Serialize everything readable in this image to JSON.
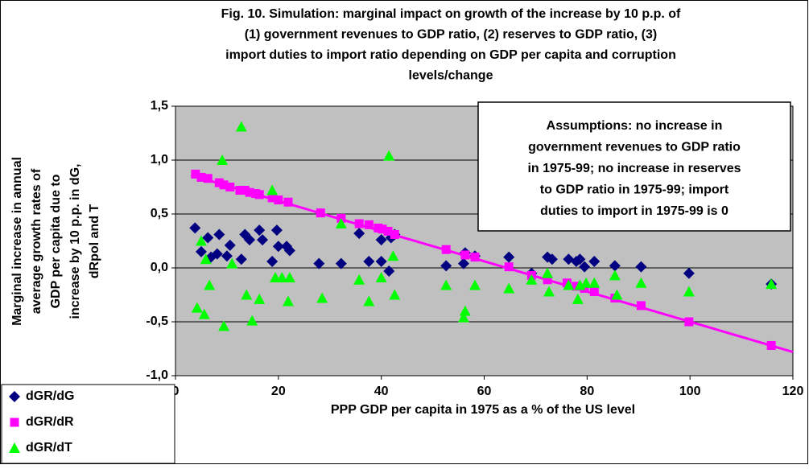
{
  "chart_data": {
    "type": "scatter",
    "title": [
      "Fig. 10. Simulation: marginal impact on growth of the increase by 10 p.p. of",
      "(1) government revenues to GDP ratio, (2) reserves to GDP ratio, (3)",
      "import duties to import ratio depending on GDP per capita and corruption",
      "levels/change"
    ],
    "x_label": "PPP GDP per capita in 1975 as a % of the US level",
    "y_label": [
      "Marginal increase in annual",
      "average growth rates of",
      "GDP per capita due to",
      "increase by 10 p.p. in dG,",
      "dRpol and T"
    ],
    "annotation": [
      "Assumptions: no increase in",
      "government revenues to GDP ratio",
      "in 1975-99; no increase in reserves",
      "to GDP ratio in 1975-99; import",
      "duties to import in 1975-99 is 0"
    ],
    "xlim": [
      0,
      120
    ],
    "xticks": [
      0,
      20,
      40,
      60,
      80,
      100,
      120
    ],
    "ylim": [
      -1.0,
      1.5
    ],
    "yticks": [
      {
        "value": -1.0,
        "label": "-1,0"
      },
      {
        "value": -0.5,
        "label": "-0,5"
      },
      {
        "value": 0.0,
        "label": "0,0"
      },
      {
        "value": 0.5,
        "label": "0,5"
      },
      {
        "value": 1.0,
        "label": "1,0"
      },
      {
        "value": 1.5,
        "label": "1,5"
      }
    ],
    "grid": true,
    "series": [
      {
        "name": "dGR/dG",
        "color": "#000080",
        "marker": "diamond",
        "x": [
          3.8,
          5,
          6.3,
          6.9,
          8.5,
          8.1,
          10,
          10.6,
          12.8,
          13.5,
          14.4,
          16.3,
          16.9,
          18.8,
          19.7,
          20,
          21.6,
          22.2,
          27.9,
          32.2,
          35.7,
          37.6,
          40,
          40,
          41.5,
          41.9,
          42.6,
          52.6,
          56,
          56.3,
          58.2,
          64.8,
          69.2,
          72.3,
          73.2,
          76.4,
          77.9,
          78.6,
          79.5,
          81.4,
          85.4,
          90.5,
          99.8,
          115.8
        ],
        "values": [
          0.37,
          0.15,
          0.28,
          0.1,
          0.31,
          0.13,
          0.11,
          0.21,
          0.08,
          0.31,
          0.26,
          0.35,
          0.26,
          0.06,
          0.35,
          0.2,
          0.2,
          0.16,
          0.04,
          0.04,
          0.32,
          0.06,
          0.06,
          0.26,
          -0.03,
          0.28,
          0.31,
          0.02,
          0.04,
          0.14,
          0.11,
          0.1,
          -0.05,
          0.1,
          0.08,
          0.08,
          0.06,
          0.08,
          0.01,
          0.06,
          0.02,
          0.01,
          -0.05,
          -0.15
        ]
      },
      {
        "name": "dGR/dR",
        "color": "#ff00ff",
        "marker": "square",
        "x": [
          3.9,
          5,
          6.3,
          8.5,
          9.4,
          10.6,
          12.5,
          13.5,
          14.4,
          15.6,
          16.3,
          18.8,
          20,
          21.9,
          28.2,
          32.2,
          35.7,
          37.6,
          39.4,
          40.2,
          41.3,
          42.6,
          52.6,
          56.3,
          58.2,
          64.8,
          69.2,
          72.3,
          76.1,
          77.9,
          79.5,
          81.4,
          85.4,
          90.5,
          99.8,
          115.8
        ],
        "values": [
          0.87,
          0.84,
          0.83,
          0.79,
          0.77,
          0.75,
          0.72,
          0.72,
          0.7,
          0.69,
          0.68,
          0.65,
          0.63,
          0.61,
          0.51,
          0.46,
          0.41,
          0.4,
          0.37,
          0.36,
          0.34,
          0.31,
          0.17,
          0.12,
          0.1,
          0.01,
          -0.07,
          -0.11,
          -0.14,
          -0.17,
          -0.19,
          -0.22,
          -0.28,
          -0.35,
          -0.5,
          -0.72
        ]
      },
      {
        "name": "dGR/dT",
        "color": "#00ff00",
        "marker": "triangle",
        "x": [
          4.2,
          5,
          5.6,
          5.9,
          6.6,
          9.1,
          9.4,
          11,
          12.8,
          13.8,
          14.9,
          16.3,
          18.8,
          19.4,
          20.7,
          22.2,
          21.9,
          28.5,
          32.2,
          35.7,
          37.6,
          40,
          41.5,
          42.3,
          42.6,
          52.6,
          56,
          56.3,
          58.2,
          64.8,
          69.2,
          72.6,
          72.3,
          76.4,
          78.2,
          78.6,
          79.8,
          81.4,
          85.4,
          85.8,
          90.5,
          99.8,
          115.8
        ],
        "values": [
          -0.37,
          0.25,
          -0.43,
          0.08,
          -0.16,
          1.0,
          -0.54,
          0.04,
          1.31,
          -0.25,
          -0.49,
          -0.29,
          0.72,
          -0.09,
          -0.09,
          -0.09,
          -0.31,
          -0.28,
          0.41,
          -0.11,
          -0.31,
          -0.09,
          1.04,
          0.11,
          -0.25,
          -0.16,
          -0.46,
          -0.4,
          -0.16,
          -0.19,
          -0.11,
          -0.22,
          -0.05,
          -0.16,
          -0.29,
          -0.16,
          -0.14,
          -0.14,
          -0.07,
          -0.25,
          -0.14,
          -0.22,
          -0.15
        ]
      }
    ],
    "trendline": {
      "color": "#ff00ff",
      "x": [
        3,
        120
      ],
      "values": [
        0.86,
        -0.78
      ]
    }
  }
}
